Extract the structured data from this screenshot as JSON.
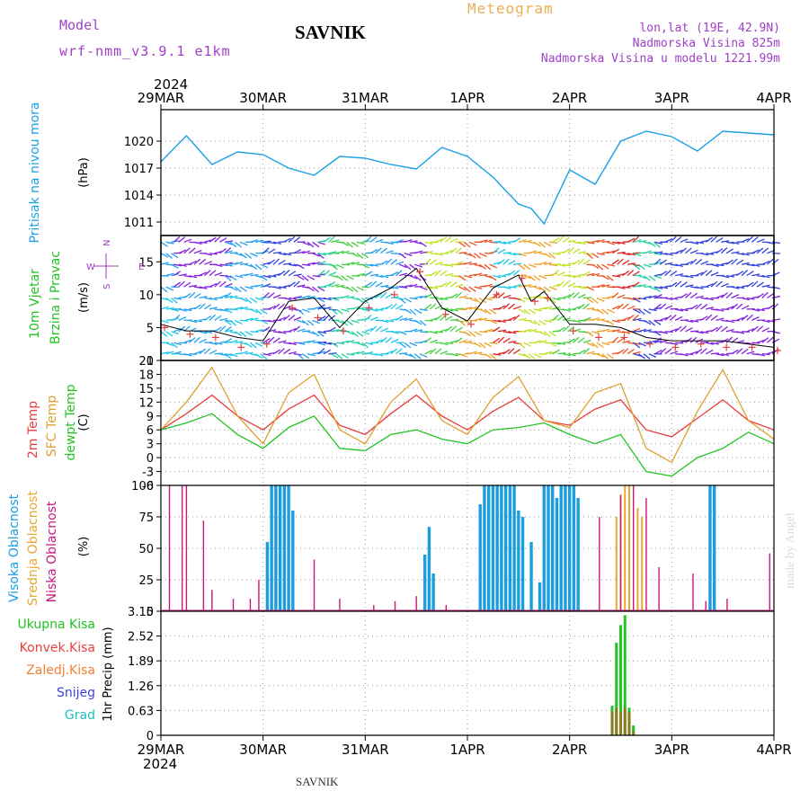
{
  "header": {
    "model_label": "Model",
    "model_name": "wrf-nmm_v3.9.1 e1km",
    "station": "SAVNIK",
    "title": "Meteogram",
    "coords": "lon,lat (19E, 42.9N)",
    "altitude": "Nadmorska Visina 825m",
    "model_altitude": "Nadmorska Visina u modelu 1221.99m",
    "signature": "made by Angel",
    "footer_station": "SAVNIK"
  },
  "colors": {
    "pressure": "#1aa0e8",
    "temp2m": "#e83c3c",
    "sfc_temp": "#e0a030",
    "dewpt": "#22c422",
    "cloud_high": "#1a9ee0",
    "cloud_mid": "#e8a830",
    "cloud_low": "#c8187c",
    "precip_total": "#22c422",
    "precip_conv": "#e84040",
    "precip_frozen": "#f08030",
    "snow": "#4040e0",
    "hail": "#20c0c0",
    "grid": "#999999"
  },
  "chart_data": [
    {
      "type": "line",
      "title": "Pritisak na nivou mora",
      "ylabel": "(hPa)",
      "ylim": [
        1009.5,
        1023.5
      ],
      "yticks": [
        "1011",
        "1014",
        "1017",
        "1020"
      ],
      "x_labels": [
        "29MAR",
        "30MAR",
        "31MAR",
        "1APR",
        "2APR",
        "3APR",
        "4APR"
      ],
      "x_year": "2024",
      "x_hours": [
        0,
        6,
        12,
        18,
        24,
        30,
        36,
        42,
        48,
        54,
        60,
        66,
        72,
        78,
        84,
        87,
        90,
        96,
        102,
        108,
        114,
        120,
        126,
        132,
        138,
        144
      ],
      "series": [
        {
          "name": "",
          "values": [
            1017.7,
            1020.6,
            1017.4,
            1018.8,
            1018.5,
            1017.0,
            1016.2,
            1018.3,
            1018.1,
            1017.4,
            1016.9,
            1019.3,
            1018.3,
            1016.0,
            1013.0,
            1012.5,
            1010.8,
            1016.8,
            1015.2,
            1020.0,
            1021.1,
            1020.5,
            1018.9,
            1021.1,
            1020.9,
            1020.7
          ]
        }
      ]
    },
    {
      "type": "line",
      "title": "10m Vjetar Brzina i Pravac",
      "ylabel": "(m/s)",
      "ylim": [
        0,
        19
      ],
      "yticks": [
        "0",
        "5",
        "10",
        "15"
      ],
      "compass": {
        "n": "N",
        "e": "E",
        "s": "S",
        "w": "W"
      },
      "x_hours": [
        0,
        6,
        12,
        18,
        24,
        30,
        36,
        42,
        48,
        54,
        60,
        66,
        72,
        78,
        84,
        87,
        90,
        96,
        102,
        108,
        114,
        120,
        126,
        132,
        138,
        144
      ],
      "series": [
        {
          "name": "",
          "values": [
            5.5,
            4.5,
            4.5,
            3.5,
            3.0,
            9.0,
            9.5,
            5.0,
            9.0,
            11.0,
            14.0,
            8.0,
            6.0,
            11.0,
            13.0,
            9.0,
            10.5,
            5.5,
            5.5,
            5.0,
            3.5,
            3.0,
            3.0,
            3.0,
            2.5,
            2.0
          ]
        }
      ]
    },
    {
      "type": "line",
      "title": "2m Temp / SFC Temp / dewpt Temp",
      "ylabel": "(C)",
      "ylim": [
        -6,
        21
      ],
      "yticks": [
        "-6",
        "-3",
        "0",
        "3",
        "6",
        "9",
        "12",
        "15",
        "18",
        "21"
      ],
      "x_hours": [
        0,
        6,
        12,
        18,
        24,
        30,
        36,
        42,
        48,
        54,
        60,
        66,
        72,
        78,
        84,
        90,
        96,
        102,
        108,
        114,
        120,
        126,
        132,
        138,
        144
      ],
      "series": [
        {
          "name": "2m Temp",
          "values": [
            6.0,
            9.5,
            13.5,
            9.0,
            6.0,
            10.5,
            13.5,
            7.0,
            5.0,
            9.5,
            13.5,
            9.0,
            6.0,
            10.0,
            13.0,
            8.0,
            7.0,
            10.5,
            12.5,
            6.0,
            4.5,
            8.5,
            12.5,
            8.0,
            6.0
          ]
        },
        {
          "name": "SFC Temp",
          "values": [
            6.0,
            12.0,
            19.5,
            9.0,
            3.0,
            14.0,
            18.0,
            6.0,
            3.0,
            12.0,
            17.0,
            8.0,
            5.0,
            13.0,
            17.5,
            8.0,
            6.5,
            14.0,
            16.0,
            2.0,
            -1.0,
            10.0,
            19.0,
            8.0,
            4.0
          ]
        },
        {
          "name": "dewpt Temp",
          "values": [
            6.0,
            7.5,
            9.5,
            5.0,
            2.0,
            6.5,
            9.0,
            2.0,
            1.5,
            5.0,
            6.0,
            4.0,
            3.0,
            6.0,
            6.5,
            7.5,
            5.0,
            3.0,
            5.0,
            -3.0,
            -4.0,
            0.0,
            2.0,
            5.5,
            3.0
          ]
        }
      ]
    },
    {
      "type": "bar",
      "title": "Visoka / Srednja / Niska Oblacnost",
      "ylabel": "(%)",
      "ylim": [
        0,
        100
      ],
      "yticks": [
        "0",
        "25",
        "50",
        "75",
        "100"
      ],
      "series": [
        {
          "name": "Visoka Oblacnost",
          "x": [
            25,
            26,
            27,
            28,
            29,
            30,
            31,
            62,
            63,
            64,
            75,
            76,
            77,
            78,
            79,
            80,
            81,
            82,
            83,
            84,
            85,
            87,
            89,
            90,
            91,
            92,
            93,
            94,
            95,
            96,
            97,
            98,
            129,
            130
          ],
          "values": [
            55,
            100,
            100,
            100,
            100,
            100,
            80,
            45,
            67,
            30,
            85,
            100,
            100,
            100,
            100,
            100,
            100,
            100,
            100,
            80,
            75,
            55,
            23,
            100,
            100,
            100,
            90,
            100,
            100,
            100,
            100,
            90,
            100,
            100
          ]
        },
        {
          "name": "Srednja Oblacnost",
          "x": [
            107,
            108,
            109,
            110,
            112,
            113
          ],
          "values": [
            75,
            93,
            100,
            100,
            82,
            75
          ]
        },
        {
          "name": "Niska Oblacnost",
          "x": [
            2,
            5,
            6,
            10,
            12,
            17,
            21,
            23,
            36,
            42,
            50,
            55,
            60,
            67,
            103,
            108,
            111,
            114,
            117,
            125,
            128,
            133,
            143
          ],
          "values": [
            100,
            100,
            100,
            72,
            17,
            10,
            10,
            25,
            41,
            10,
            5,
            8,
            12,
            5,
            75,
            92,
            100,
            90,
            35,
            30,
            8,
            10,
            46
          ]
        }
      ]
    },
    {
      "type": "bar",
      "title": "Ukupna Kisa / Konvek.Kisa / Zaledj.Kisa / Snijeg / Grad",
      "ylabel": "1hr Precip (mm)",
      "ylim": [
        0,
        3.15
      ],
      "yticks": [
        "0",
        "0.63",
        "1.26",
        "1.89",
        "2.52",
        "3.15"
      ],
      "series": [
        {
          "name": "Ukupna Kisa",
          "x": [
            106,
            107,
            108,
            109,
            110,
            111
          ],
          "values": [
            0.75,
            2.35,
            2.8,
            3.05,
            0.7,
            0.25
          ]
        },
        {
          "name": "Konvek.Kisa",
          "x": [
            106,
            107,
            108,
            109,
            110,
            111
          ],
          "values": [
            0.6,
            0.7,
            0.6,
            0.7,
            0.6,
            0.1
          ]
        }
      ]
    }
  ]
}
